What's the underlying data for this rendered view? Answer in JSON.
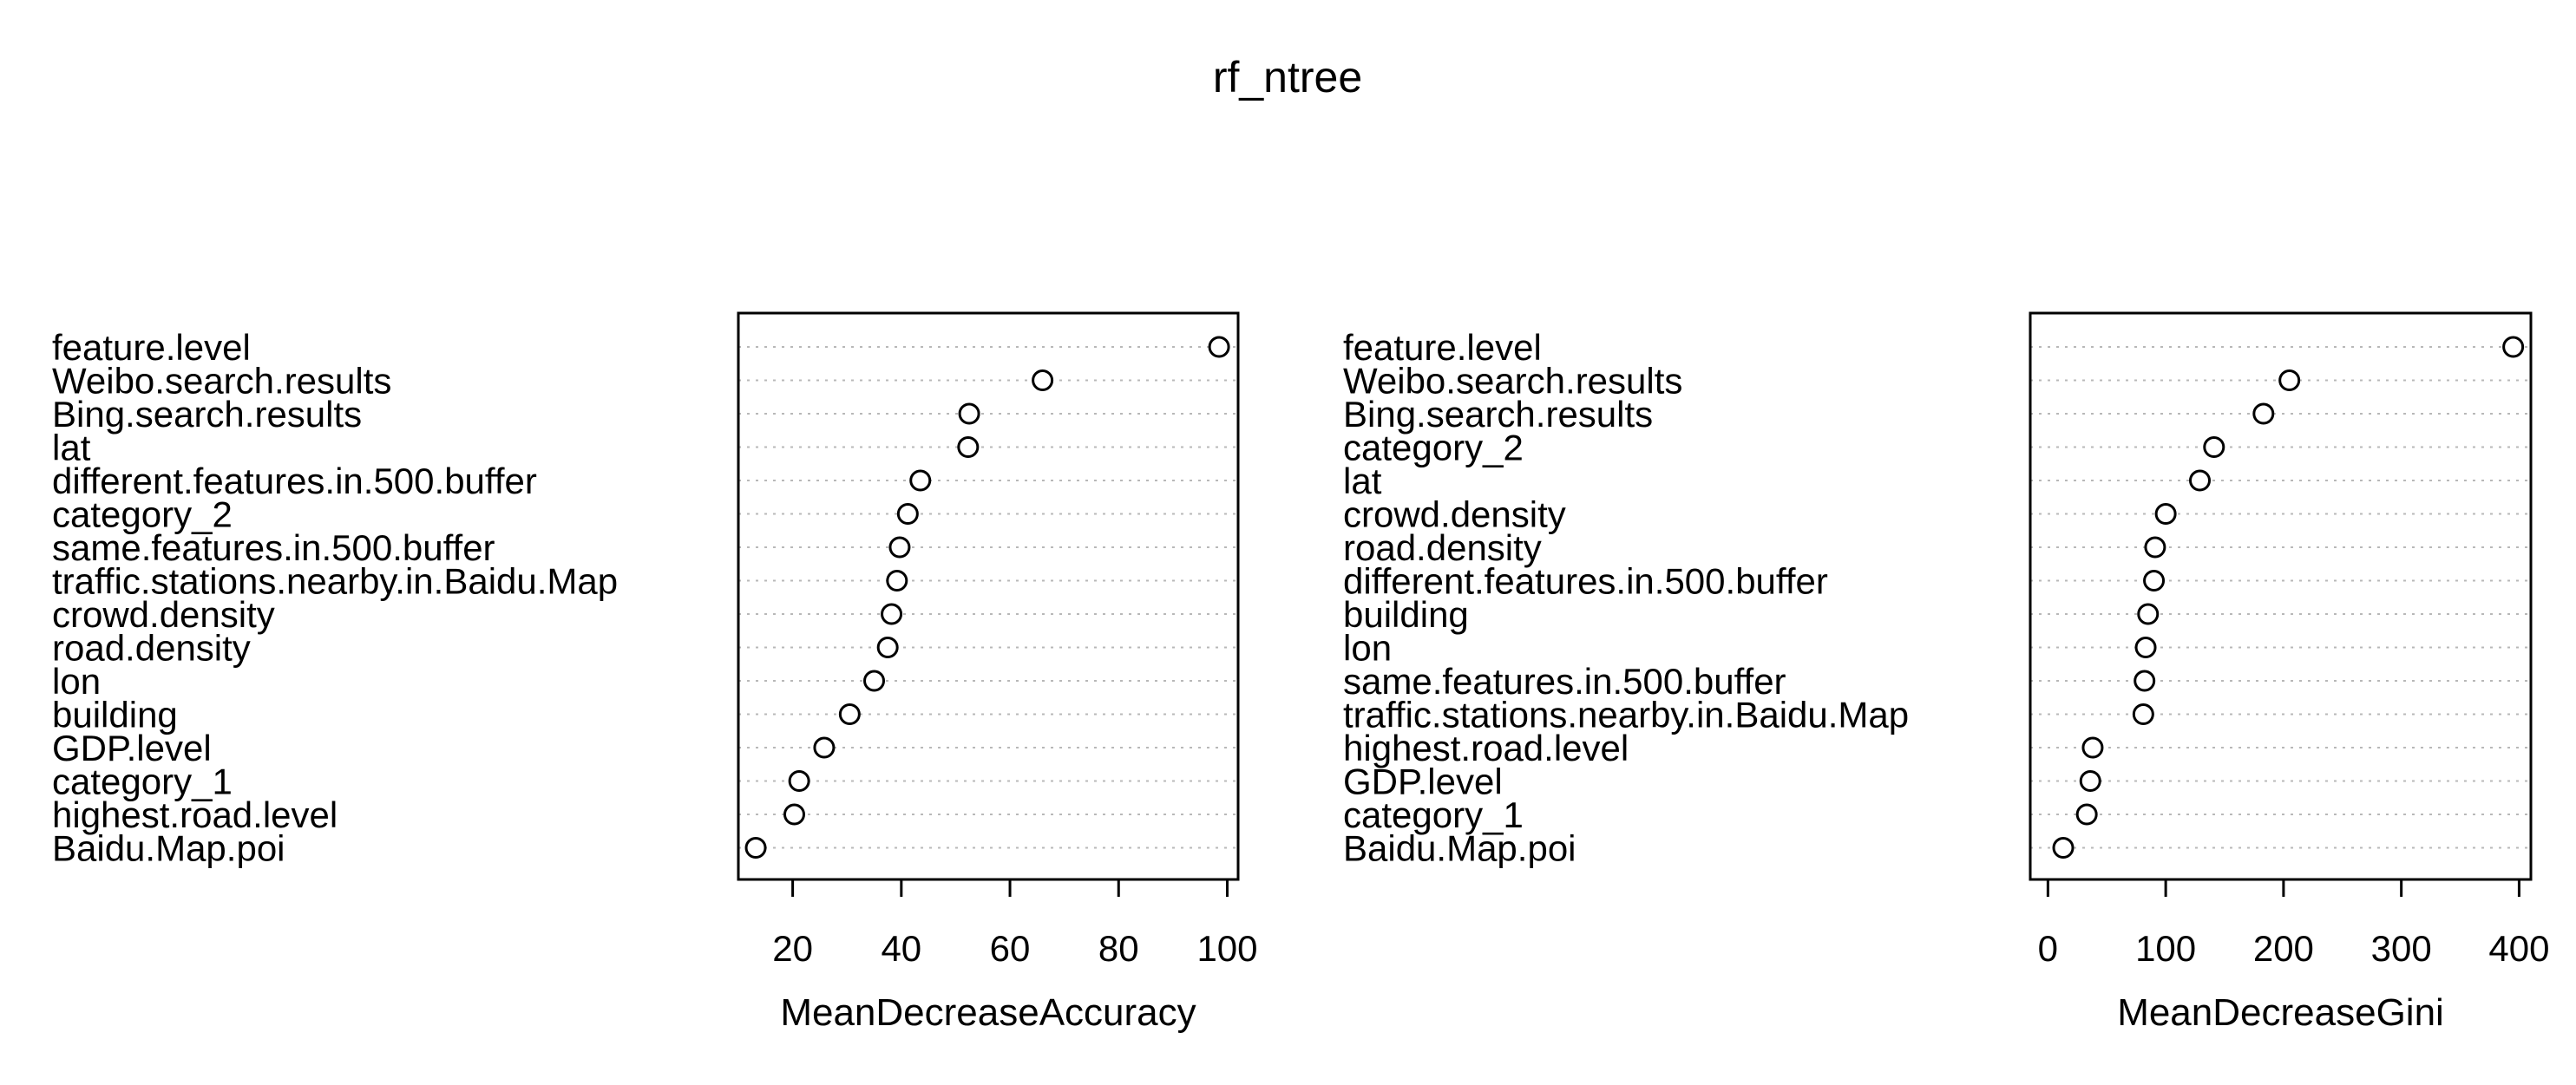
{
  "title": "rf_ntree",
  "chart_data": [
    {
      "type": "scatter",
      "title": "rf_ntree",
      "xlabel": "MeanDecreaseAccuracy",
      "ylabel": "",
      "xlim": [
        10,
        102
      ],
      "xticks": [
        20,
        40,
        60,
        80,
        100
      ],
      "grid": true,
      "categories": [
        "feature.level",
        "Weibo.search.results",
        "Bing.search.results",
        "lat",
        "different.features.in.500.buffer",
        "category_2",
        "same.features.in.500.buffer",
        "traffic.stations.nearby.in.Baidu.Map",
        "crowd.density",
        "road.density",
        "lon",
        "building",
        "GDP.level",
        "category_1",
        "highest.road.level",
        "Baidu.Map.poi"
      ],
      "values": [
        98.5,
        66,
        52.5,
        52.3,
        43.5,
        41.2,
        39.7,
        39.2,
        38.2,
        37.5,
        35,
        30.5,
        25.8,
        21.2,
        20.3,
        13.2
      ]
    },
    {
      "type": "scatter",
      "xlabel": "MeanDecreaseGini",
      "ylabel": "",
      "xlim": [
        -15,
        410
      ],
      "xticks": [
        0,
        100,
        200,
        300,
        400
      ],
      "grid": true,
      "categories": [
        "feature.level",
        "Weibo.search.results",
        "Bing.search.results",
        "category_2",
        "lat",
        "crowd.density",
        "road.density",
        "different.features.in.500.buffer",
        "building",
        "lon",
        "same.features.in.500.buffer",
        "traffic.stations.nearby.in.Baidu.Map",
        "highest.road.level",
        "GDP.level",
        "category_1",
        "Baidu.Map.poi"
      ],
      "values": [
        395,
        205,
        183,
        141,
        129,
        100,
        91,
        90,
        85,
        83,
        82,
        81,
        38,
        36,
        33,
        13
      ]
    }
  ]
}
